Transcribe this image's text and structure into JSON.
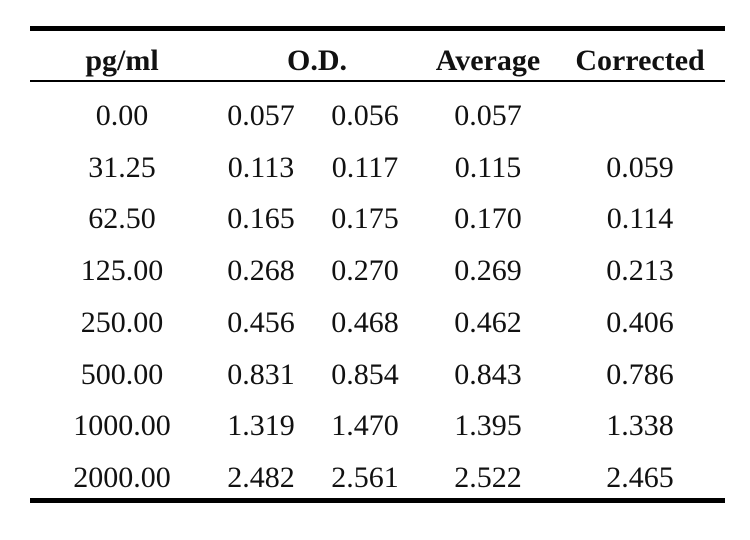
{
  "table": {
    "headers": {
      "conc": "pg/ml",
      "od": "O.D.",
      "average": "Average",
      "corrected": "Corrected"
    },
    "rows": [
      {
        "conc": "0.00",
        "od1": "0.057",
        "od2": "0.056",
        "average": "0.057",
        "corrected": ""
      },
      {
        "conc": "31.25",
        "od1": "0.113",
        "od2": "0.117",
        "average": "0.115",
        "corrected": "0.059"
      },
      {
        "conc": "62.50",
        "od1": "0.165",
        "od2": "0.175",
        "average": "0.170",
        "corrected": "0.114"
      },
      {
        "conc": "125.00",
        "od1": "0.268",
        "od2": "0.270",
        "average": "0.269",
        "corrected": "0.213"
      },
      {
        "conc": "250.00",
        "od1": "0.456",
        "od2": "0.468",
        "average": "0.462",
        "corrected": "0.406"
      },
      {
        "conc": "500.00",
        "od1": "0.831",
        "od2": "0.854",
        "average": "0.843",
        "corrected": "0.786"
      },
      {
        "conc": "1000.00",
        "od1": "1.319",
        "od2": "1.470",
        "average": "1.395",
        "corrected": "1.338"
      },
      {
        "conc": "2000.00",
        "od1": "2.482",
        "od2": "2.561",
        "average": "2.522",
        "corrected": "2.465"
      }
    ]
  }
}
